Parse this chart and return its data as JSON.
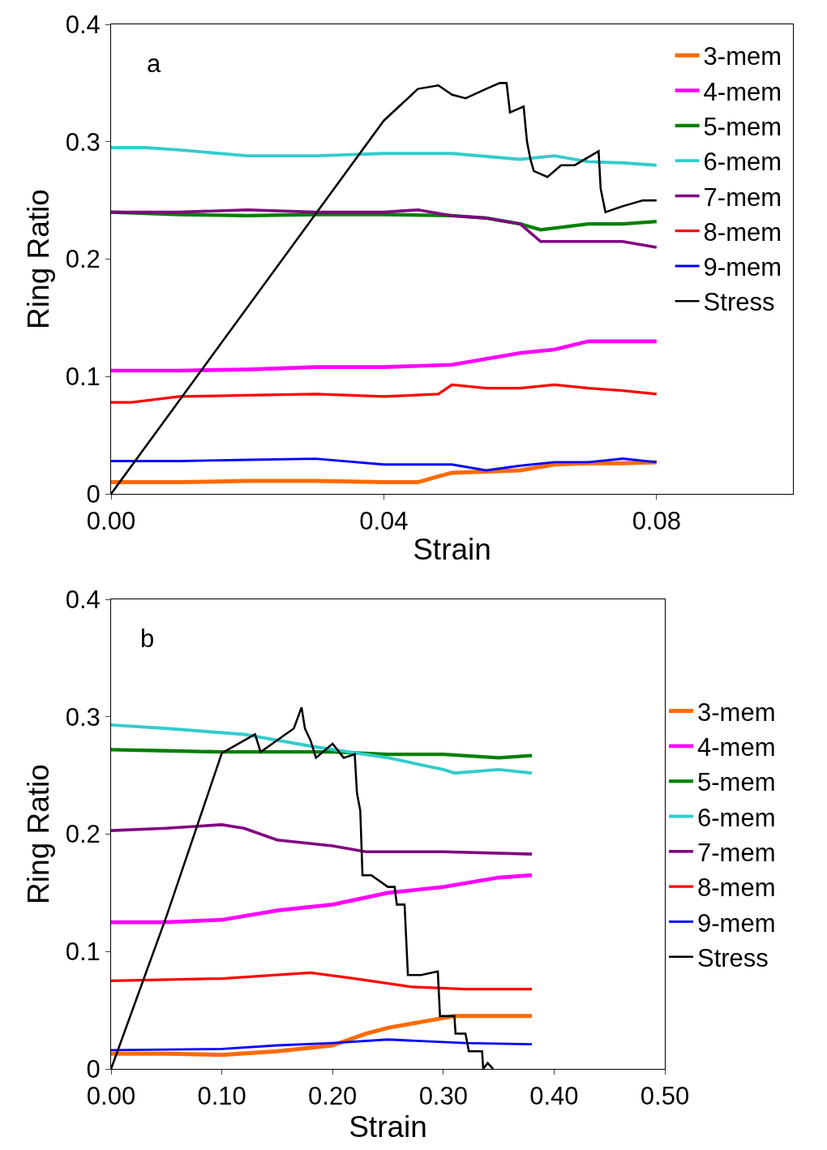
{
  "chart_data": [
    {
      "type": "line",
      "xlabel": "Strain",
      "ylabel": "Ring Ratio",
      "annotations": [
        "a"
      ],
      "legend": "top right",
      "grid": false,
      "marker": "none",
      "line_style": "solid",
      "xlim": [
        0,
        0.1
      ],
      "xticks": [
        {
          "value": 0,
          "label": "0.00"
        },
        {
          "value": 0.04,
          "label": "0.04"
        },
        {
          "value": 0.08,
          "label": "0.08"
        }
      ],
      "ylim": [
        0,
        0.4
      ],
      "yticks": [
        0,
        0.1,
        0.2,
        0.3,
        0.4
      ],
      "series": [
        {
          "name": "3-mem",
          "color": "#ff6a00",
          "x": [
            0,
            0.01,
            0.02,
            0.03,
            0.04,
            0.045,
            0.048,
            0.05,
            0.055,
            0.06,
            0.065,
            0.07,
            0.075,
            0.08
          ],
          "values": [
            0.01,
            0.01,
            0.011,
            0.011,
            0.01,
            0.01,
            0.015,
            0.018,
            0.019,
            0.02,
            0.025,
            0.026,
            0.026,
            0.027
          ]
        },
        {
          "name": "4-mem",
          "color": "#ff00ff",
          "x": [
            0,
            0.01,
            0.02,
            0.03,
            0.04,
            0.05,
            0.055,
            0.06,
            0.065,
            0.07,
            0.075,
            0.08
          ],
          "values": [
            0.105,
            0.105,
            0.106,
            0.108,
            0.108,
            0.11,
            0.115,
            0.12,
            0.123,
            0.13,
            0.13,
            0.13
          ]
        },
        {
          "name": "5-mem",
          "color": "#008000",
          "x": [
            0,
            0.01,
            0.02,
            0.03,
            0.04,
            0.05,
            0.055,
            0.06,
            0.063,
            0.07,
            0.075,
            0.08
          ],
          "values": [
            0.24,
            0.238,
            0.237,
            0.238,
            0.238,
            0.237,
            0.235,
            0.23,
            0.225,
            0.23,
            0.23,
            0.232
          ]
        },
        {
          "name": "6-mem",
          "color": "#33cccc",
          "x": [
            0,
            0.005,
            0.01,
            0.02,
            0.03,
            0.04,
            0.05,
            0.06,
            0.065,
            0.07,
            0.075,
            0.08
          ],
          "values": [
            0.295,
            0.295,
            0.293,
            0.288,
            0.288,
            0.29,
            0.29,
            0.285,
            0.288,
            0.283,
            0.282,
            0.28
          ]
        },
        {
          "name": "7-mem",
          "color": "#800080",
          "x": [
            0,
            0.01,
            0.02,
            0.03,
            0.04,
            0.045,
            0.05,
            0.055,
            0.06,
            0.063,
            0.07,
            0.075,
            0.08
          ],
          "values": [
            0.24,
            0.24,
            0.242,
            0.24,
            0.24,
            0.242,
            0.237,
            0.235,
            0.23,
            0.215,
            0.215,
            0.215,
            0.21
          ]
        },
        {
          "name": "8-mem",
          "color": "#ff0000",
          "x": [
            0,
            0.003,
            0.01,
            0.02,
            0.03,
            0.04,
            0.048,
            0.05,
            0.055,
            0.06,
            0.065,
            0.07,
            0.075,
            0.08
          ],
          "values": [
            0.078,
            0.078,
            0.083,
            0.084,
            0.085,
            0.083,
            0.085,
            0.093,
            0.09,
            0.09,
            0.093,
            0.09,
            0.088,
            0.085
          ]
        },
        {
          "name": "9-mem",
          "color": "#0000ff",
          "x": [
            0,
            0.01,
            0.02,
            0.03,
            0.04,
            0.05,
            0.055,
            0.06,
            0.065,
            0.07,
            0.075,
            0.08
          ],
          "values": [
            0.028,
            0.028,
            0.029,
            0.03,
            0.025,
            0.025,
            0.02,
            0.024,
            0.027,
            0.027,
            0.03,
            0.027
          ]
        },
        {
          "name": "Stress",
          "color": "#000000",
          "x": [
            0,
            0.04,
            0.045,
            0.048,
            0.05,
            0.052,
            0.055,
            0.057,
            0.058,
            0.0585,
            0.0605,
            0.061,
            0.0615,
            0.062,
            0.064,
            0.066,
            0.068,
            0.0715,
            0.0718,
            0.0725,
            0.075,
            0.078,
            0.08
          ],
          "values": [
            0,
            0.318,
            0.345,
            0.348,
            0.34,
            0.337,
            0.345,
            0.35,
            0.35,
            0.325,
            0.33,
            0.3,
            0.285,
            0.275,
            0.27,
            0.28,
            0.28,
            0.292,
            0.26,
            0.24,
            0.245,
            0.25,
            0.25
          ]
        }
      ]
    },
    {
      "type": "line",
      "xlabel": "Strain",
      "ylabel": "Ring Ratio",
      "annotations": [
        "b"
      ],
      "legend": "right",
      "grid": false,
      "marker": "none",
      "line_style": "solid",
      "xlim": [
        0,
        0.5
      ],
      "xticks": [
        {
          "value": 0,
          "label": "0.00"
        },
        {
          "value": 0.1,
          "label": "0.10"
        },
        {
          "value": 0.2,
          "label": "0.20"
        },
        {
          "value": 0.3,
          "label": "0.30"
        },
        {
          "value": 0.4,
          "label": "0.40"
        },
        {
          "value": 0.5,
          "label": "0.50"
        }
      ],
      "ylim": [
        0,
        0.4
      ],
      "yticks": [
        0,
        0.1,
        0.2,
        0.3,
        0.4
      ],
      "series": [
        {
          "name": "3-mem",
          "color": "#ff6a00",
          "x": [
            0,
            0.05,
            0.1,
            0.15,
            0.2,
            0.23,
            0.25,
            0.28,
            0.31,
            0.35,
            0.38
          ],
          "values": [
            0.013,
            0.013,
            0.012,
            0.015,
            0.02,
            0.03,
            0.035,
            0.04,
            0.045,
            0.045,
            0.045
          ]
        },
        {
          "name": "4-mem",
          "color": "#ff00ff",
          "x": [
            0,
            0.05,
            0.1,
            0.15,
            0.2,
            0.25,
            0.3,
            0.35,
            0.38
          ],
          "values": [
            0.125,
            0.125,
            0.127,
            0.135,
            0.14,
            0.15,
            0.155,
            0.163,
            0.165
          ]
        },
        {
          "name": "5-mem",
          "color": "#008000",
          "x": [
            0,
            0.05,
            0.1,
            0.15,
            0.2,
            0.25,
            0.3,
            0.35,
            0.38
          ],
          "values": [
            0.272,
            0.271,
            0.27,
            0.27,
            0.27,
            0.268,
            0.268,
            0.265,
            0.267
          ]
        },
        {
          "name": "6-mem",
          "color": "#33cccc",
          "x": [
            0,
            0.05,
            0.12,
            0.18,
            0.25,
            0.3,
            0.31,
            0.35,
            0.38
          ],
          "values": [
            0.293,
            0.29,
            0.285,
            0.275,
            0.265,
            0.255,
            0.252,
            0.255,
            0.252
          ]
        },
        {
          "name": "7-mem",
          "color": "#800080",
          "x": [
            0,
            0.05,
            0.1,
            0.12,
            0.15,
            0.2,
            0.23,
            0.3,
            0.38
          ],
          "values": [
            0.203,
            0.205,
            0.208,
            0.205,
            0.195,
            0.19,
            0.185,
            0.185,
            0.183
          ]
        },
        {
          "name": "8-mem",
          "color": "#ff0000",
          "x": [
            0,
            0.1,
            0.18,
            0.22,
            0.27,
            0.32,
            0.38
          ],
          "values": [
            0.075,
            0.077,
            0.082,
            0.077,
            0.07,
            0.068,
            0.068
          ]
        },
        {
          "name": "9-mem",
          "color": "#0000ff",
          "x": [
            0,
            0.1,
            0.15,
            0.2,
            0.25,
            0.32,
            0.38
          ],
          "values": [
            0.016,
            0.017,
            0.02,
            0.022,
            0.025,
            0.022,
            0.021
          ]
        },
        {
          "name": "Stress",
          "color": "#000000",
          "x": [
            0,
            0.05,
            0.1,
            0.13,
            0.135,
            0.15,
            0.165,
            0.172,
            0.175,
            0.18,
            0.185,
            0.2,
            0.21,
            0.22,
            0.222,
            0.225,
            0.227,
            0.235,
            0.25,
            0.256,
            0.258,
            0.265,
            0.268,
            0.28,
            0.295,
            0.297,
            0.31,
            0.311,
            0.32,
            0.323,
            0.335,
            0.336,
            0.34,
            0.345
          ],
          "values": [
            0,
            0.13,
            0.269,
            0.285,
            0.27,
            0.28,
            0.29,
            0.308,
            0.29,
            0.28,
            0.265,
            0.277,
            0.265,
            0.268,
            0.235,
            0.22,
            0.165,
            0.165,
            0.155,
            0.155,
            0.14,
            0.14,
            0.08,
            0.08,
            0.083,
            0.045,
            0.045,
            0.03,
            0.03,
            0.015,
            0.015,
            0,
            0.005,
            0
          ]
        }
      ]
    }
  ]
}
